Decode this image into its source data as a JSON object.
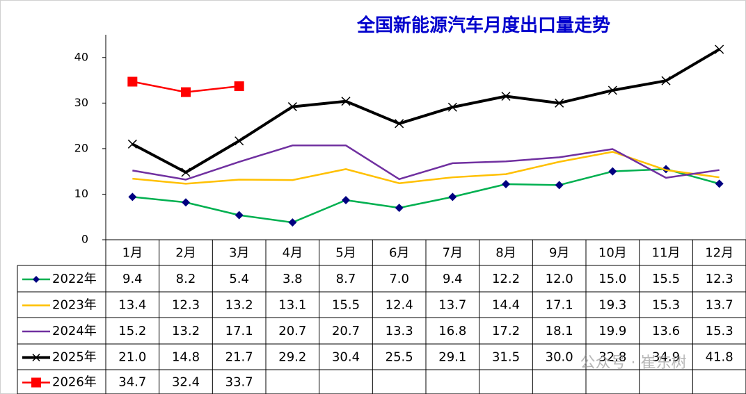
{
  "chart_data": {
    "type": "line",
    "title": "全国新能源汽车月度出口量走势",
    "categories": [
      "1月",
      "2月",
      "3月",
      "4月",
      "5月",
      "6月",
      "7月",
      "8月",
      "9月",
      "10月",
      "11月",
      "12月"
    ],
    "series": [
      {
        "name": "2022年",
        "color": "#00b050",
        "marker": "diamond",
        "marker_color": "#000080",
        "values": [
          9.4,
          8.2,
          5.4,
          3.8,
          8.7,
          7.0,
          9.4,
          12.2,
          12.0,
          15.0,
          15.5,
          12.3
        ],
        "value_labels": [
          "9.4",
          "8.2",
          "5.4",
          "3.8",
          "8.7",
          "7.0",
          "9.4",
          "12.2",
          "12.0",
          "15.0",
          "15.5",
          "12.3"
        ]
      },
      {
        "name": "2023年",
        "color": "#ffc000",
        "marker": "none",
        "marker_color": "#ffc000",
        "values": [
          13.4,
          12.3,
          13.2,
          13.1,
          15.5,
          12.4,
          13.7,
          14.4,
          17.1,
          19.3,
          15.3,
          13.7
        ],
        "value_labels": [
          "13.4",
          "12.3",
          "13.2",
          "13.1",
          "15.5",
          "12.4",
          "13.7",
          "14.4",
          "17.1",
          "19.3",
          "15.3",
          "13.7"
        ]
      },
      {
        "name": "2024年",
        "color": "#7030a0",
        "marker": "none",
        "marker_color": "#7030a0",
        "values": [
          15.2,
          13.2,
          17.1,
          20.7,
          20.7,
          13.3,
          16.8,
          17.2,
          18.1,
          19.9,
          13.6,
          15.3
        ],
        "value_labels": [
          "15.2",
          "13.2",
          "17.1",
          "20.7",
          "20.7",
          "13.3",
          "16.8",
          "17.2",
          "18.1",
          "19.9",
          "13.6",
          "15.3"
        ]
      },
      {
        "name": "2025年",
        "color": "#000000",
        "marker": "x",
        "marker_color": "#000000",
        "values": [
          21.0,
          14.8,
          21.7,
          29.2,
          30.4,
          25.5,
          29.1,
          31.5,
          30.0,
          32.8,
          34.9,
          41.8
        ],
        "value_labels": [
          "21.0",
          "14.8",
          "21.7",
          "29.2",
          "30.4",
          "25.5",
          "29.1",
          "31.5",
          "30.0",
          "32.8",
          "34.9",
          "41.8"
        ]
      },
      {
        "name": "2026年",
        "color": "#ff0000",
        "marker": "square",
        "marker_color": "#ff0000",
        "values": [
          34.7,
          32.4,
          33.7,
          null,
          null,
          null,
          null,
          null,
          null,
          null,
          null,
          null
        ],
        "value_labels": [
          "34.7",
          "32.4",
          "33.7",
          null,
          null,
          null,
          null,
          null,
          null,
          null,
          null,
          null
        ]
      }
    ],
    "ylim": [
      0,
      45
    ],
    "yticks": [
      0,
      10,
      20,
      30,
      40
    ],
    "grid": false,
    "watermark": "公众号 · 崔东树"
  }
}
